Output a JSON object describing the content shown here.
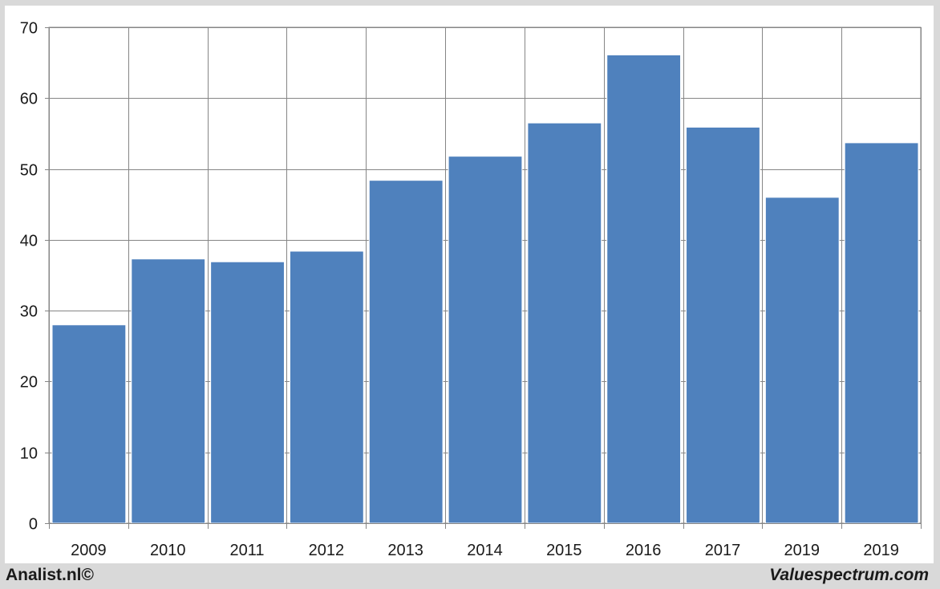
{
  "chart_data": {
    "type": "bar",
    "title": "",
    "xlabel": "",
    "ylabel": "",
    "categories": [
      "2009",
      "2010",
      "2011",
      "2012",
      "2013",
      "2014",
      "2015",
      "2016",
      "2017",
      "2019",
      "2019"
    ],
    "values": [
      28.0,
      37.3,
      36.9,
      38.4,
      48.4,
      51.8,
      56.5,
      66.1,
      55.9,
      46.0,
      53.7
    ],
    "ylim": [
      0,
      70
    ],
    "yticks": [
      "0",
      "10",
      "20",
      "30",
      "40",
      "50",
      "60",
      "70"
    ],
    "grid": true,
    "legend": "none",
    "bar_color": "#4f81bd"
  },
  "footer": {
    "left": "Analist.nl©",
    "right": "Valuespectrum.com"
  }
}
